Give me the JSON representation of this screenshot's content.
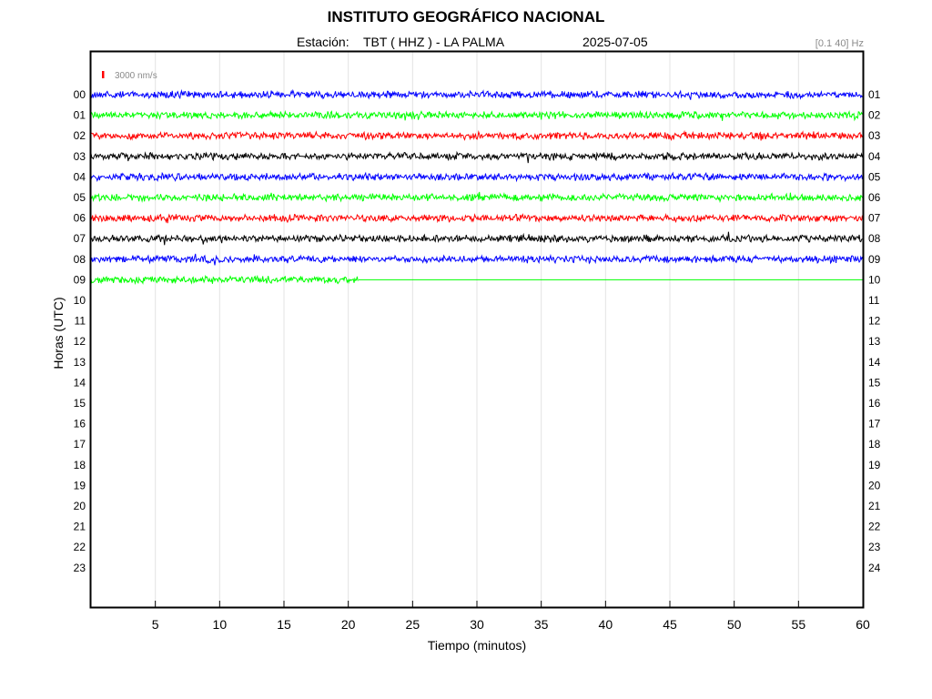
{
  "header": {
    "title": "INSTITUTO GEOGRÁFICO NACIONAL",
    "station_label": "Estación:",
    "station": "TBT ( HHZ ) - LA PALMA",
    "date": "2025-07-05",
    "filter": "[0.1 40] Hz"
  },
  "chart_data": {
    "type": "line",
    "xlabel": "Tiempo (minutos)",
    "ylabel": "Horas (UTC)",
    "xlim": [
      0,
      60
    ],
    "x_ticks": [
      "5",
      "10",
      "15",
      "20",
      "25",
      "30",
      "35",
      "40",
      "45",
      "50",
      "55",
      "60"
    ],
    "grid": "vertical",
    "scale_label": "3000 nm/s",
    "scale_color": "#ff0000",
    "left_labels": [
      "00",
      "01",
      "02",
      "03",
      "04",
      "05",
      "06",
      "07",
      "08",
      "09",
      "10",
      "11",
      "12",
      "13",
      "14",
      "15",
      "16",
      "17",
      "18",
      "19",
      "20",
      "21",
      "22",
      "23"
    ],
    "right_labels": [
      "01",
      "02",
      "03",
      "04",
      "05",
      "06",
      "07",
      "08",
      "09",
      "10",
      "11",
      "12",
      "13",
      "14",
      "15",
      "16",
      "17",
      "18",
      "19",
      "20",
      "21",
      "22",
      "23",
      "24"
    ],
    "colors": [
      "#0000ff",
      "#00ff00",
      "#ff0000",
      "#000000"
    ],
    "traces": [
      {
        "hour": "00",
        "recorded_minutes": 60
      },
      {
        "hour": "01",
        "recorded_minutes": 60
      },
      {
        "hour": "02",
        "recorded_minutes": 60
      },
      {
        "hour": "03",
        "recorded_minutes": 60
      },
      {
        "hour": "04",
        "recorded_minutes": 60
      },
      {
        "hour": "05",
        "recorded_minutes": 60
      },
      {
        "hour": "06",
        "recorded_minutes": 60
      },
      {
        "hour": "07",
        "recorded_minutes": 60
      },
      {
        "hour": "08",
        "recorded_minutes": 60
      },
      {
        "hour": "09",
        "recorded_minutes": 20.8
      }
    ]
  }
}
